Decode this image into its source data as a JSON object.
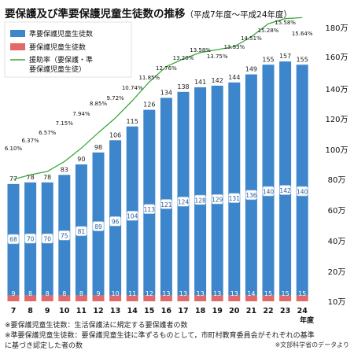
{
  "title": "要保護及び準要保護児童生徒数の推移",
  "subtitle": "（平成7年度～平成24年度）",
  "chart_data": {
    "type": "bar",
    "stacked": true,
    "categories": [
      "7",
      "8",
      "9",
      "10",
      "11",
      "12",
      "13",
      "14",
      "15",
      "16",
      "17",
      "18",
      "19",
      "20",
      "21",
      "22",
      "23",
      "24"
    ],
    "x_unit_label": "年度",
    "series": [
      {
        "name": "要保護児童生徒数",
        "values": [
          9,
          8,
          8,
          8,
          8,
          9,
          10,
          11,
          12,
          13,
          13,
          13,
          13,
          13,
          14,
          15,
          15,
          15
        ],
        "color": "#e06a6a"
      },
      {
        "name": "準要保護児童生徒数",
        "values": [
          68,
          70,
          70,
          75,
          81,
          89,
          96,
          104,
          113,
          121,
          124,
          128,
          129,
          131,
          136,
          140,
          142,
          140
        ],
        "color": "#3d86cc"
      }
    ],
    "totals": [
      77,
      78,
      78,
      83,
      90,
      98,
      106,
      115,
      126,
      134,
      138,
      141,
      142,
      144,
      149,
      155,
      157,
      155
    ],
    "rate_series": {
      "name": "援助率（要保護・準要保護児童生徒）",
      "values": [
        6.1,
        6.37,
        6.57,
        7.15,
        7.94,
        8.85,
        9.72,
        10.74,
        11.85,
        12.76,
        13.2,
        13.58,
        13.75,
        13.93,
        14.51,
        15.28,
        15.58,
        15.64
      ],
      "labels": [
        "6.10%",
        "6.37%",
        "6.57%",
        "7.15%",
        "7.94%",
        "8.85%",
        "9.72%",
        "10.74%",
        "11.85%",
        "12.76%",
        "13.20%",
        "13.58%",
        "13.75%",
        "13.93%",
        "14.51%",
        "15.28%",
        "15.58%",
        "15.64%"
      ],
      "color": "#3aaa3a"
    },
    "y_ticks": [
      "10万",
      "20万",
      "40万",
      "60万",
      "80万",
      "100万",
      "120万",
      "140万",
      "160万",
      "180万"
    ],
    "legend_position": "top-left"
  },
  "footnotes": [
    "※要保護児童生徒数：生活保護法に規定する要保護者の数",
    "※準要保護児童生徒数：要保護児童生徒に準ずるものとして，市町村教育委員会がそれぞれの基準",
    "に基づき認定した者の数"
  ],
  "source": "※文部科学省のデータより"
}
